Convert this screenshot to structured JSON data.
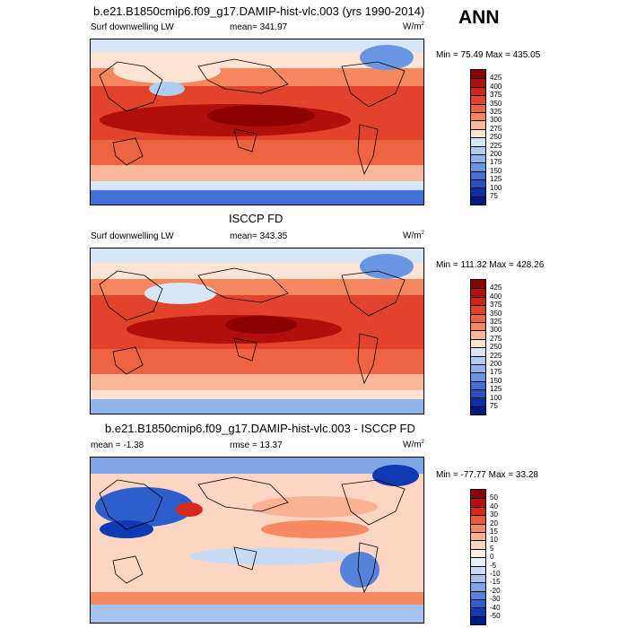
{
  "season": "ANN",
  "units": "W/m",
  "units_sup": "2",
  "panels": [
    {
      "title": "b.e21.B1850cmip6.f09_g17.DAMIP-hist-vlc.003 (yrs 1990-2014)",
      "left_label": "Surf downwelling LW",
      "center_label": "mean=  341.97",
      "minmax": "Min =  75.49 Max = 435.05",
      "ticks": [
        "425",
        "400",
        "375",
        "350",
        "325",
        "300",
        "275",
        "250",
        "225",
        "200",
        "175",
        "150",
        "125",
        "100",
        "75"
      ]
    },
    {
      "title": "ISCCP FD",
      "left_label": "Surf downwelling LW",
      "center_label": "mean=  343.35",
      "minmax": "Min = 111.32 Max = 428.26",
      "ticks": [
        "425",
        "400",
        "375",
        "350",
        "325",
        "300",
        "275",
        "250",
        "225",
        "200",
        "175",
        "150",
        "125",
        "100",
        "75"
      ]
    },
    {
      "title": "b.e21.B1850cmip6.f09_g17.DAMIP-hist-vlc.003 - ISCCP FD",
      "left_label": "mean =  -1.38",
      "center_label": "rmse =  13.37",
      "minmax": "Min = -77.77 Max =  33.28",
      "ticks": [
        "50",
        "40",
        "30",
        "20",
        "15",
        "10",
        "5",
        "0",
        "-5",
        "-10",
        "-15",
        "-20",
        "-30",
        "-40",
        "-50"
      ]
    }
  ],
  "colors": {
    "abs_scale": [
      "#8b0000",
      "#b00f0b",
      "#d0261a",
      "#e2432a",
      "#ee6440",
      "#f5875f",
      "#fbb79a",
      "#fde3d3",
      "#d6e6f7",
      "#b0cdf0",
      "#8fb3ea",
      "#6a95e2",
      "#4371d6",
      "#2650c4",
      "#0a2ea6",
      "#001a85"
    ],
    "diff_scale": [
      "#8b0000",
      "#b50f0e",
      "#d62b1c",
      "#ec5a38",
      "#f68a62",
      "#fbb193",
      "#fdd6c3",
      "#fff1e8",
      "#eaf1fb",
      "#c9daf5",
      "#a6c3ef",
      "#7fa6e6",
      "#5683da",
      "#2e5ecb",
      "#0f39b5",
      "#001a85"
    ]
  }
}
